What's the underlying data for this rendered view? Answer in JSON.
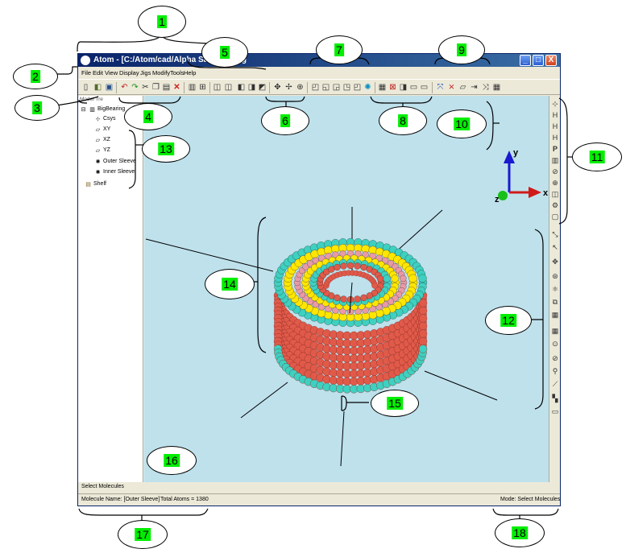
{
  "window": {
    "title": "Atom - [C:/Atom/cad/Alpha Samples/Big",
    "min_glyph": "_",
    "max_glyph": "□",
    "close_glyph": "X"
  },
  "menu": [
    "File",
    "Edit",
    "View",
    "Display",
    "Jigs",
    "Modify",
    "Tools",
    "Help"
  ],
  "toolbar_icons": [
    "new-file-icon",
    "open-file-icon",
    "save-icon",
    "undo-icon",
    "redo-icon",
    "cut-icon",
    "copy-icon",
    "paste-icon",
    "delete-icon",
    "part-icon",
    "measure-icon",
    "view-icon",
    "view-icon",
    "view-icon",
    "view-icon",
    "view-icon",
    "zoom-icon",
    "pan-icon",
    "rotate-icon",
    "display-style-icon",
    "display-style-icon",
    "display-style-icon",
    "display-style-icon",
    "display-style-icon",
    "display-style-icon",
    "grid-icon",
    "grid-icon",
    "grid-icon",
    "grid-icon",
    "grid-icon",
    "jig-icon",
    "jig-icon",
    "jig-icon",
    "jig-icon",
    "jig-icon",
    "jig-icon"
  ],
  "model_tree": {
    "tab_label": "Model Tre",
    "items": [
      {
        "label": "BigBearing",
        "icon": "part-icon"
      },
      {
        "label": "Csys",
        "icon": "csys-icon"
      },
      {
        "label": "XY",
        "icon": "plane-icon"
      },
      {
        "label": "XZ",
        "icon": "plane-icon"
      },
      {
        "label": "YZ",
        "icon": "plane-icon"
      },
      {
        "label": "Outer Sleeve",
        "icon": "molecule-icon"
      },
      {
        "label": "Inner Sleeve",
        "icon": "molecule-icon"
      },
      {
        "label": "Shelf",
        "icon": "clipboard-icon"
      }
    ]
  },
  "axes": {
    "x": "x",
    "y": "y",
    "z": "z"
  },
  "right_toolbar_icons": [
    "select-atoms-icon",
    "h-icon",
    "h-icon",
    "h-icon",
    "p-icon",
    "cookie-icon",
    "extrude-icon",
    "revolve-icon",
    "sleeve-icon",
    "gear-icon",
    "box-icon",
    "move-icon",
    "select-icon",
    "translate-icon",
    "rotate-icon",
    "atom-icon",
    "move-icon",
    "bond-icon",
    "grid-icon",
    "fuse-icon",
    "fuse-icon",
    "fuse-icon",
    "ruler-icon",
    "color-icon",
    "screen-icon"
  ],
  "command_bar": "Select Molecules",
  "status": {
    "molecule": "Molecule Name: [Outer Sleeve]",
    "atoms": "Total Atoms = 1380",
    "mode": "Mode: Select Molecules"
  },
  "callouts": [
    "1",
    "2",
    "3",
    "4",
    "5",
    "6",
    "7",
    "8",
    "9",
    "10",
    "11",
    "12",
    "13",
    "14",
    "15",
    "16",
    "17",
    "18"
  ],
  "colors": {
    "viewport": "#bee1ec",
    "atom_red": "#e05a4a",
    "atom_cyan": "#3ed0c0",
    "atom_yellow": "#ffe600",
    "atom_pink": "#e89aa6",
    "highlight": "#00ee00"
  }
}
